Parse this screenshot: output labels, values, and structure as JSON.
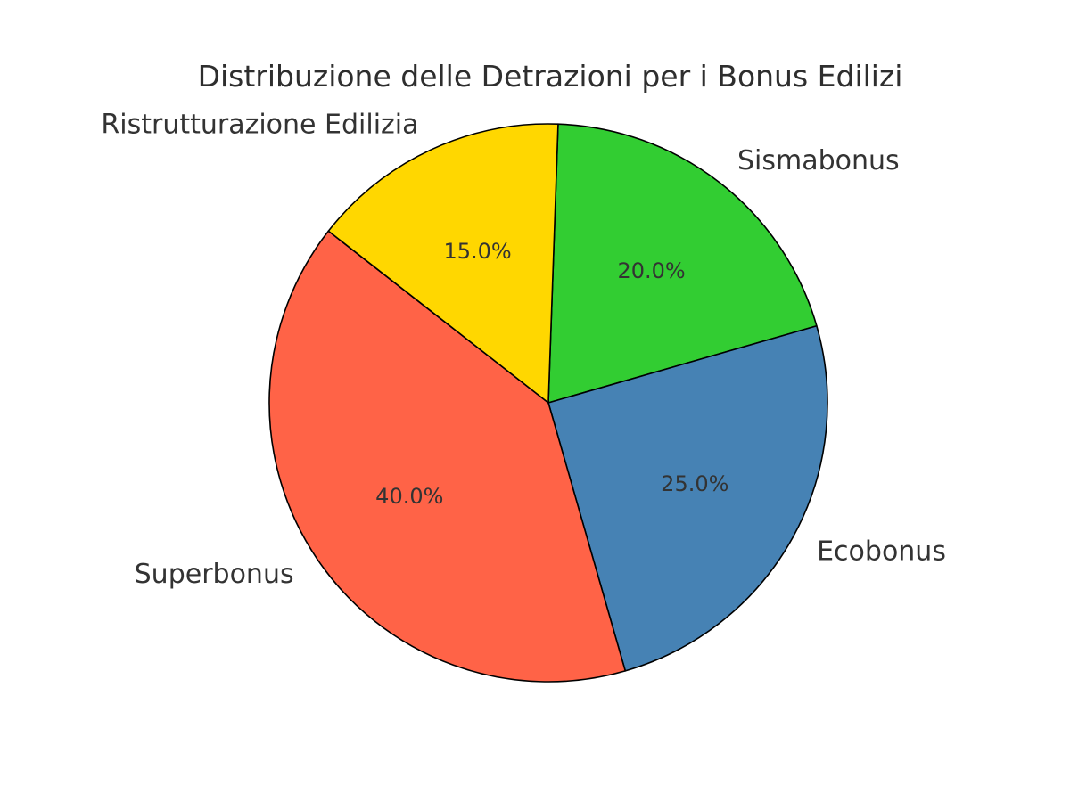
{
  "figure": {
    "background": "#ffffff"
  },
  "chart_data": {
    "type": "pie",
    "title": "Distribuzione delle Detrazioni per i Bonus Edilizi",
    "slices": [
      {
        "label": "Sismabonus",
        "value": 20.0,
        "pct_label": "20.0%",
        "color": "#32CD32"
      },
      {
        "label": "Ecobonus",
        "value": 25.0,
        "pct_label": "25.0%",
        "color": "#4682B4"
      },
      {
        "label": "Superbonus",
        "value": 40.0,
        "pct_label": "40.0%",
        "color": "#FF6347"
      },
      {
        "label": "Ristrutturazione Edilizia",
        "value": 15.0,
        "pct_label": "15.0%",
        "color": "#FFD700"
      }
    ],
    "edge_color": "#000000",
    "text_color": "#333333",
    "title_color": "#2e2e2e",
    "start_angle": 88,
    "direction": "clockwise",
    "label_distance": 1.1,
    "pct_distance": 0.6,
    "legend": "none",
    "background": "#ffffff"
  }
}
